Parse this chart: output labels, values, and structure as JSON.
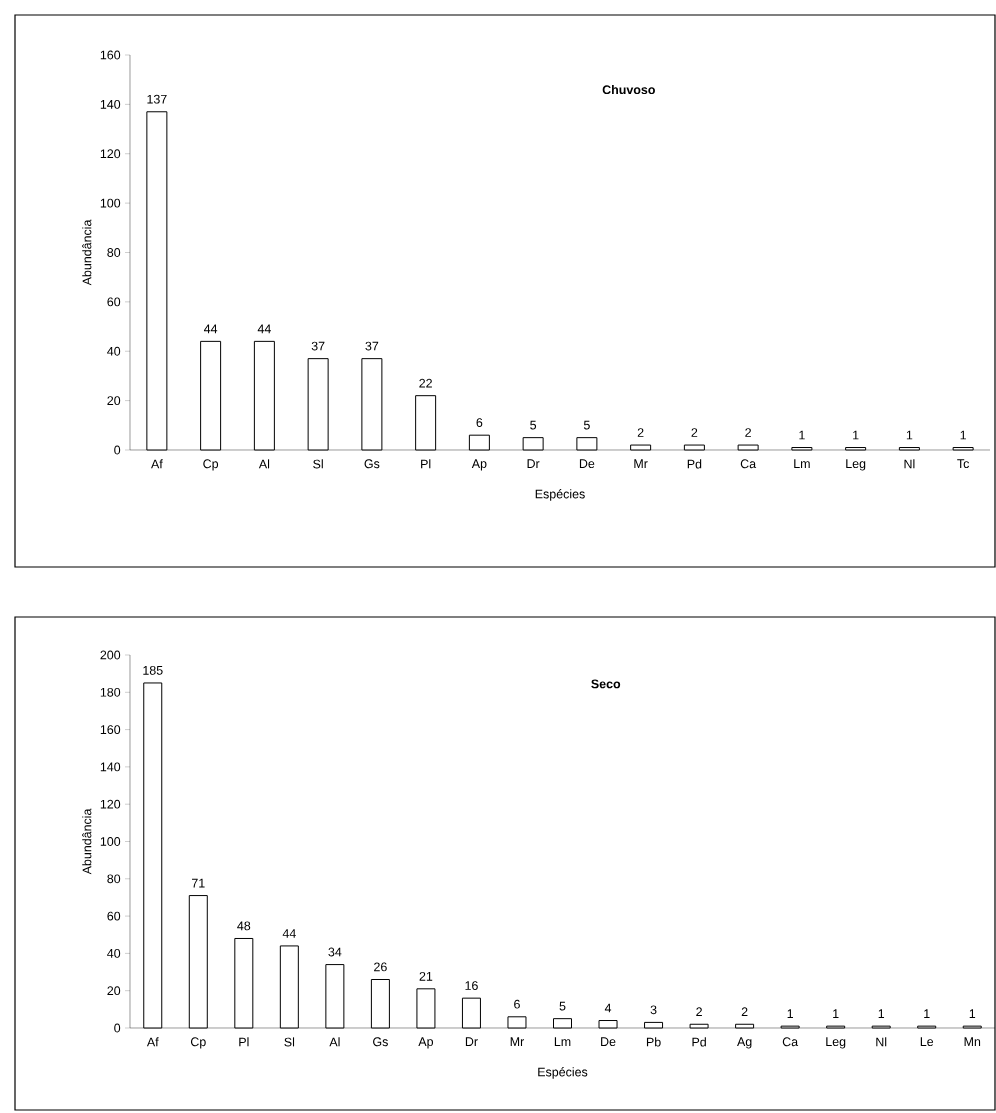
{
  "chart_data": [
    {
      "type": "bar",
      "title": "Chuvoso",
      "xlabel": "Espécies",
      "ylabel": "Abundância",
      "categories": [
        "Af",
        "Cp",
        "Al",
        "Sl",
        "Gs",
        "Pl",
        "Ap",
        "Dr",
        "De",
        "Mr",
        "Pd",
        "Ca",
        "Lm",
        "Leg",
        "Nl",
        "Tc"
      ],
      "values": [
        137,
        44,
        44,
        37,
        37,
        22,
        6,
        5,
        5,
        2,
        2,
        2,
        1,
        1,
        1,
        1
      ],
      "color": "#ffffff",
      "ylim": [
        0,
        160
      ],
      "yticks": [
        0,
        20,
        40,
        60,
        80,
        100,
        120,
        140,
        160
      ],
      "data_labels": true
    },
    {
      "type": "bar",
      "title": "Seco",
      "xlabel": "Espécies",
      "ylabel": "Abundância",
      "categories": [
        "Af",
        "Cp",
        "Pl",
        "Sl",
        "Al",
        "Gs",
        "Ap",
        "Dr",
        "Mr",
        "Lm",
        "De",
        "Pb",
        "Pd",
        "Ag",
        "Ca",
        "Leg",
        "Nl",
        "Le",
        "Mn"
      ],
      "values": [
        185,
        71,
        48,
        44,
        34,
        26,
        21,
        16,
        6,
        5,
        4,
        3,
        2,
        2,
        1,
        1,
        1,
        1,
        1
      ],
      "color": "#ffffff",
      "ylim": [
        0,
        200
      ],
      "yticks": [
        0,
        20,
        40,
        60,
        80,
        100,
        120,
        140,
        160,
        180,
        200
      ],
      "data_labels": true
    }
  ]
}
